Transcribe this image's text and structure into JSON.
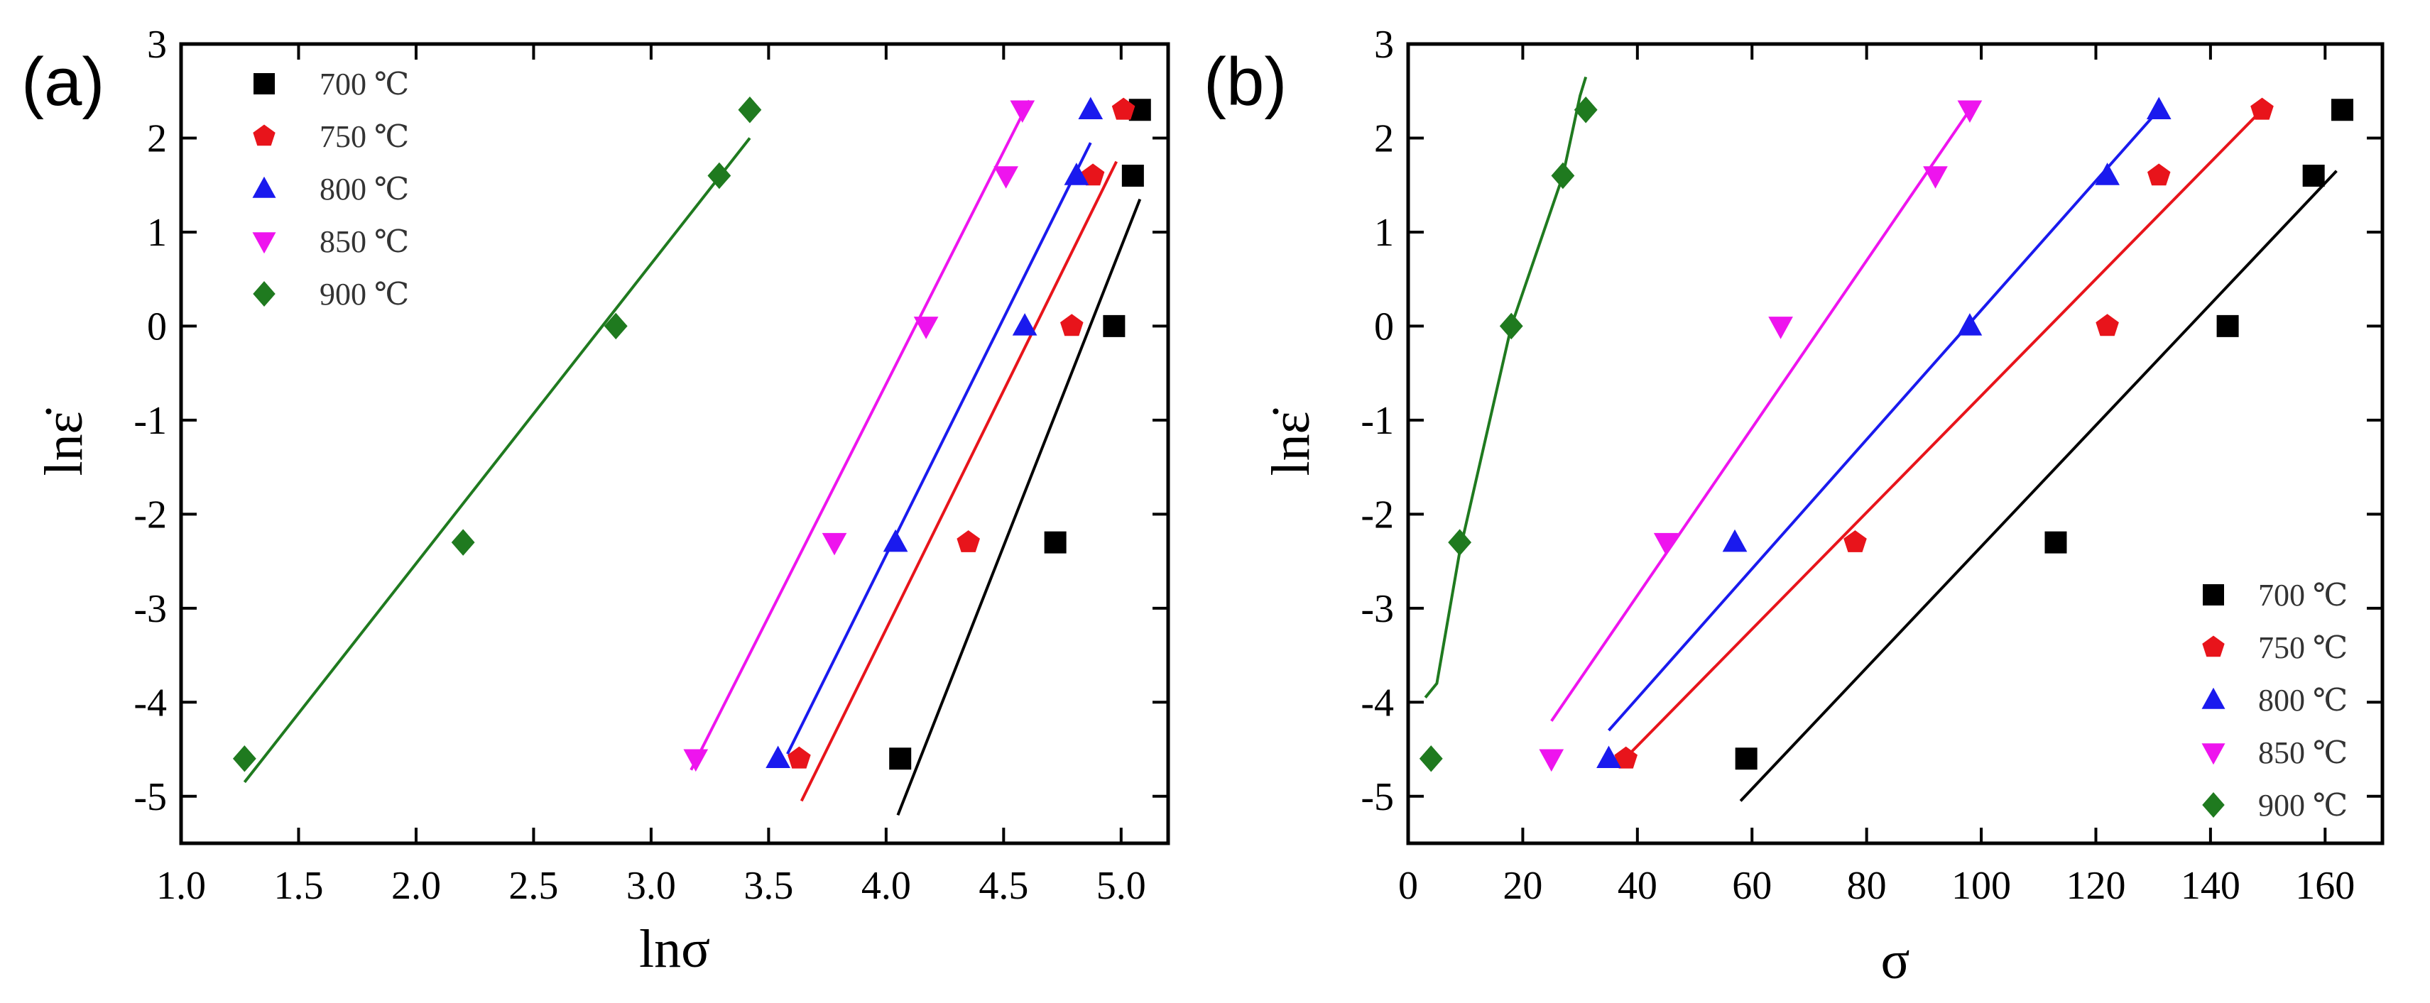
{
  "chart_data": [
    {
      "type": "scatter",
      "panel_label": "(a)",
      "xlabel": "lnσ",
      "ylabel": "lnε̇",
      "xlim": [
        1.0,
        5.2
      ],
      "ylim": [
        -5.5,
        3.0
      ],
      "xticks": [
        1.0,
        1.5,
        2.0,
        2.5,
        3.0,
        3.5,
        4.0,
        4.5,
        5.0
      ],
      "xtick_labels": [
        "1.0",
        "1.5",
        "2.0",
        "2.5",
        "3.0",
        "3.5",
        "4.0",
        "4.5",
        "5.0"
      ],
      "yticks": [
        -5,
        -4,
        -3,
        -2,
        -1,
        0,
        1,
        2,
        3
      ],
      "ytick_labels": [
        "-5",
        "-4",
        "-3",
        "-2",
        "-1",
        "0",
        "1",
        "2",
        "3"
      ],
      "legend_position": "top-left",
      "series": [
        {
          "name": "700 ℃",
          "color": "#000000",
          "marker": "square",
          "points": [
            [
              4.06,
              -4.6
            ],
            [
              4.72,
              -2.3
            ],
            [
              4.97,
              0.0
            ],
            [
              5.05,
              1.6
            ],
            [
              5.08,
              2.3
            ]
          ],
          "fit": [
            [
              4.05,
              -5.2
            ],
            [
              5.08,
              1.35
            ]
          ]
        },
        {
          "name": "750 ℃",
          "color": "#e8141b",
          "marker": "pentagon",
          "points": [
            [
              3.63,
              -4.6
            ],
            [
              4.35,
              -2.3
            ],
            [
              4.79,
              0.0
            ],
            [
              4.88,
              1.6
            ],
            [
              5.01,
              2.3
            ]
          ],
          "fit": [
            [
              3.64,
              -5.05
            ],
            [
              4.98,
              1.75
            ]
          ]
        },
        {
          "name": "800 ℃",
          "color": "#1a1aee",
          "marker": "triangle-up",
          "points": [
            [
              3.54,
              -4.6
            ],
            [
              4.04,
              -2.3
            ],
            [
              4.59,
              0.0
            ],
            [
              4.81,
              1.6
            ],
            [
              4.87,
              2.3
            ]
          ],
          "fit": [
            [
              3.58,
              -4.55
            ],
            [
              4.87,
              1.95
            ]
          ]
        },
        {
          "name": "850 ℃",
          "color": "#ee14ee",
          "marker": "triangle-down",
          "points": [
            [
              3.19,
              -4.6
            ],
            [
              3.78,
              -2.3
            ],
            [
              4.17,
              0.0
            ],
            [
              4.51,
              1.6
            ],
            [
              4.58,
              2.3
            ]
          ],
          "fit": [
            [
              3.17,
              -4.72
            ],
            [
              4.61,
              2.4
            ]
          ]
        },
        {
          "name": "900 ℃",
          "color": "#1f7a1f",
          "marker": "diamond",
          "points": [
            [
              1.27,
              -4.6
            ],
            [
              2.2,
              -2.3
            ],
            [
              2.85,
              0.0
            ],
            [
              3.29,
              1.6
            ],
            [
              3.42,
              2.3
            ]
          ],
          "fit": [
            [
              1.27,
              -4.85
            ],
            [
              3.42,
              2.0
            ]
          ]
        }
      ]
    },
    {
      "type": "scatter",
      "panel_label": "(b)",
      "xlabel": "σ",
      "ylabel": "lnε̇",
      "xlim": [
        0,
        170
      ],
      "ylim": [
        -5.5,
        3.0
      ],
      "xticks": [
        0,
        20,
        40,
        60,
        80,
        100,
        120,
        140,
        160
      ],
      "xtick_labels": [
        "0",
        "20",
        "40",
        "60",
        "80",
        "100",
        "120",
        "140",
        "160"
      ],
      "yticks": [
        -5,
        -4,
        -3,
        -2,
        -1,
        0,
        1,
        2,
        3
      ],
      "ytick_labels": [
        "-5",
        "-4",
        "-3",
        "-2",
        "-1",
        "0",
        "1",
        "2",
        "3"
      ],
      "legend_position": "bottom-right",
      "series": [
        {
          "name": "700 ℃",
          "color": "#000000",
          "marker": "square",
          "points": [
            [
              59,
              -4.6
            ],
            [
              113,
              -2.3
            ],
            [
              143,
              0.0
            ],
            [
              158,
              1.6
            ],
            [
              163,
              2.3
            ]
          ],
          "fit": [
            [
              58,
              -5.05
            ],
            [
              162,
              1.65
            ]
          ]
        },
        {
          "name": "750 ℃",
          "color": "#e8141b",
          "marker": "pentagon",
          "points": [
            [
              38,
              -4.6
            ],
            [
              78,
              -2.3
            ],
            [
              122,
              0.0
            ],
            [
              131,
              1.6
            ],
            [
              149,
              2.3
            ]
          ],
          "fit": [
            [
              37,
              -4.65
            ],
            [
              149,
              2.3
            ]
          ]
        },
        {
          "name": "800 ℃",
          "color": "#1a1aee",
          "marker": "triangle-up",
          "points": [
            [
              35,
              -4.6
            ],
            [
              57,
              -2.3
            ],
            [
              98,
              0.0
            ],
            [
              122,
              1.6
            ],
            [
              131,
              2.3
            ]
          ],
          "fit": [
            [
              35,
              -4.3
            ],
            [
              131,
              2.3
            ]
          ]
        },
        {
          "name": "850 ℃",
          "color": "#ee14ee",
          "marker": "triangle-down",
          "points": [
            [
              25,
              -4.6
            ],
            [
              45,
              -2.3
            ],
            [
              65,
              0.0
            ],
            [
              92,
              1.6
            ],
            [
              98,
              2.3
            ]
          ],
          "fit": [
            [
              25,
              -4.2
            ],
            [
              98,
              2.3
            ]
          ]
        },
        {
          "name": "900 ℃",
          "color": "#1f7a1f",
          "marker": "diamond",
          "points": [
            [
              4,
              -4.6
            ],
            [
              9,
              -2.3
            ],
            [
              18,
              0.0
            ],
            [
              27,
              1.6
            ],
            [
              31,
              2.3
            ]
          ],
          "fit": [
            [
              3,
              -3.95
            ],
            [
              5,
              -3.8
            ],
            [
              9,
              -2.4
            ],
            [
              18,
              0.0
            ],
            [
              27,
              1.6
            ],
            [
              30,
              2.45
            ],
            [
              31,
              2.65
            ]
          ]
        }
      ]
    }
  ]
}
